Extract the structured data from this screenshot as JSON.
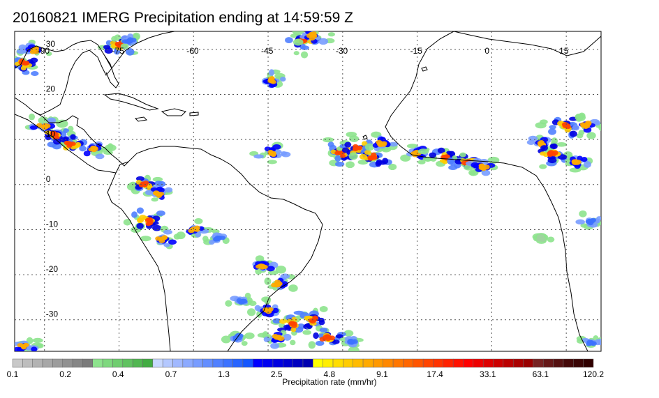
{
  "title": "20160821 IMERG Precipitation ending at 14:59:59 Z",
  "map": {
    "lon_range": [
      -96,
      22
    ],
    "lat_range": [
      -37,
      34
    ],
    "lon_labels": [
      "-90",
      "-75",
      "-60",
      "-45",
      "-30",
      "-15",
      "0",
      "15"
    ],
    "lon_values": [
      -90,
      -75,
      -60,
      -45,
      -30,
      -15,
      0,
      15
    ],
    "lat_labels": [
      "30",
      "20",
      "10",
      "0",
      "-10",
      "-20",
      "-30"
    ],
    "lat_values": [
      30,
      20,
      10,
      0,
      -10,
      -20,
      -30
    ],
    "gridlines": true
  },
  "colorbar": {
    "title": "Precipitation rate (mm/hr)",
    "tick_labels": [
      "0.1",
      "0.2",
      "0.4",
      "0.7",
      "1.3",
      "2.5",
      "4.8",
      "9.1",
      "17.4",
      "33.1",
      "63.1",
      "120.2"
    ],
    "colors": [
      "#c8c8c8",
      "#bdbdbd",
      "#b2b2b2",
      "#a7a7a7",
      "#9c9c9c",
      "#919191",
      "#868686",
      "#7b7b7b",
      "#8de38d",
      "#7ed87e",
      "#6fcd6f",
      "#60c260",
      "#51b751",
      "#42ac42",
      "#c8d8ff",
      "#b4c8ff",
      "#a0b8ff",
      "#8caaff",
      "#789cff",
      "#648eff",
      "#5080ff",
      "#3c72ff",
      "#2864ff",
      "#1456ff",
      "#0000ff",
      "#0000f0",
      "#0000e0",
      "#0000d0",
      "#0000c0",
      "#0000b0",
      "#ffff00",
      "#ffee00",
      "#ffdd00",
      "#ffcc00",
      "#ffbb00",
      "#ffaa00",
      "#ff9900",
      "#ff8800",
      "#ff7700",
      "#ff6600",
      "#ff5500",
      "#ff4400",
      "#ff3300",
      "#ff2200",
      "#ff1100",
      "#ff0000",
      "#ee0000",
      "#dd0000",
      "#cc0000",
      "#bb0000",
      "#aa0000",
      "#990000",
      "#772222",
      "#661818",
      "#551111",
      "#440808",
      "#3a0505",
      "#300000"
    ]
  },
  "precip_cells": [
    {
      "lon": -94,
      "lat": 27,
      "i": 3
    },
    {
      "lon": -92,
      "lat": 30,
      "i": 2
    },
    {
      "lon": -75,
      "lat": 31,
      "i": 3
    },
    {
      "lon": -73,
      "lat": 32,
      "i": 1
    },
    {
      "lon": -38,
      "lat": 32,
      "i": 3
    },
    {
      "lon": -36,
      "lat": 33,
      "i": 2
    },
    {
      "lon": -44,
      "lat": 23,
      "i": 2
    },
    {
      "lon": -90,
      "lat": 13,
      "i": 2
    },
    {
      "lon": -88,
      "lat": 11,
      "i": 3
    },
    {
      "lon": -85,
      "lat": 9,
      "i": 3
    },
    {
      "lon": -80,
      "lat": 8,
      "i": 2
    },
    {
      "lon": -70,
      "lat": 0,
      "i": 3
    },
    {
      "lon": -67,
      "lat": -2,
      "i": 2
    },
    {
      "lon": -69,
      "lat": -8,
      "i": 3
    },
    {
      "lon": -66,
      "lat": -12,
      "i": 2
    },
    {
      "lon": -60,
      "lat": -10,
      "i": 2
    },
    {
      "lon": -55,
      "lat": -12,
      "i": 1
    },
    {
      "lon": -44,
      "lat": 7,
      "i": 2
    },
    {
      "lon": -30,
      "lat": 7,
      "i": 3
    },
    {
      "lon": -27,
      "lat": 8,
      "i": 3
    },
    {
      "lon": -24,
      "lat": 6,
      "i": 3
    },
    {
      "lon": -22,
      "lat": 9,
      "i": 2
    },
    {
      "lon": -15,
      "lat": 7,
      "i": 2
    },
    {
      "lon": -9,
      "lat": 6,
      "i": 3
    },
    {
      "lon": -5,
      "lat": 5,
      "i": 3
    },
    {
      "lon": -2,
      "lat": 4,
      "i": 2
    },
    {
      "lon": 10,
      "lat": 9,
      "i": 2
    },
    {
      "lon": 12,
      "lat": 7,
      "i": 3
    },
    {
      "lon": 15,
      "lat": 13,
      "i": 3
    },
    {
      "lon": 19,
      "lat": 13,
      "i": 2
    },
    {
      "lon": 17,
      "lat": 5,
      "i": 2
    },
    {
      "lon": -46,
      "lat": -18,
      "i": 2
    },
    {
      "lon": -43,
      "lat": -22,
      "i": 2
    },
    {
      "lon": -50,
      "lat": -26,
      "i": 1
    },
    {
      "lon": -45,
      "lat": -28,
      "i": 2
    },
    {
      "lon": -40,
      "lat": -31,
      "i": 3
    },
    {
      "lon": -36,
      "lat": -30,
      "i": 3
    },
    {
      "lon": -33,
      "lat": -34,
      "i": 3
    },
    {
      "lon": -43,
      "lat": -34,
      "i": 2
    },
    {
      "lon": -51,
      "lat": -34,
      "i": 1
    },
    {
      "lon": -28,
      "lat": -35,
      "i": 1
    },
    {
      "lon": -94,
      "lat": -36,
      "i": 2
    },
    {
      "lon": 20,
      "lat": -35,
      "i": 1
    },
    {
      "lon": 20,
      "lat": -8,
      "i": 1
    },
    {
      "lon": 10,
      "lat": -12,
      "i": 0
    }
  ]
}
